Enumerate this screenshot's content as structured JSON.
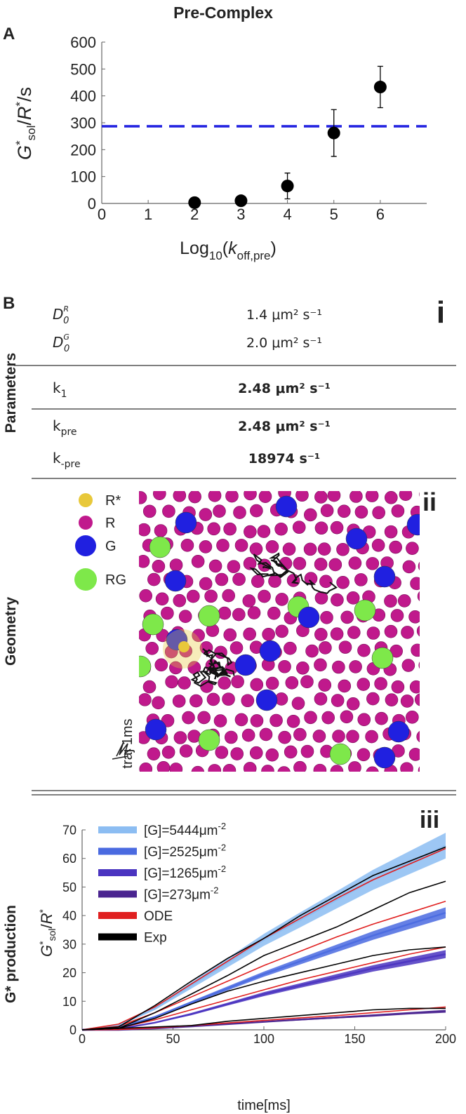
{
  "chart_data": [
    {
      "type": "scatter",
      "title": "Pre-Complex",
      "panel": "A",
      "y_label": [
        "G",
        "*",
        "sol",
        "/",
        "R",
        "*",
        "/s"
      ],
      "x_label": [
        "Log",
        "10",
        "(",
        "k",
        "off,pre",
        ")"
      ],
      "x": [
        2,
        3,
        4,
        5,
        6
      ],
      "values": [
        3,
        10,
        65,
        262,
        433
      ],
      "errors": [
        0,
        3,
        48,
        87,
        77
      ],
      "color": "#000000",
      "reference_line": {
        "value": 287,
        "color": "#2020e0"
      },
      "xlim": [
        0,
        7
      ],
      "xticks": [
        0,
        1,
        2,
        3,
        4,
        5,
        6
      ],
      "ylim": [
        0,
        600
      ],
      "yticks": [
        0,
        100,
        200,
        300,
        400,
        500,
        600
      ]
    },
    {
      "type": "band-line",
      "panel": "iii",
      "side_label": "G* production",
      "y_label": [
        "G",
        "*",
        "sol",
        "/",
        "R",
        "*"
      ],
      "x_label": "time[ms]",
      "x": [
        0,
        20,
        40,
        60,
        80,
        100,
        120,
        140,
        160,
        180,
        200
      ],
      "series": [
        {
          "name": [
            "[G]=5444μm",
            "-2"
          ],
          "color": "#8cbdf2",
          "values": [
            0,
            1.5,
            7.5,
            15.5,
            23.5,
            31.5,
            38.5,
            45.5,
            52.5,
            58.5,
            64.5
          ],
          "band": [
            0,
            0.2,
            0.6,
            1.1,
            1.6,
            2.1,
            2.6,
            3,
            3.5,
            4,
            4.5
          ]
        },
        {
          "name": [
            "[G]=2525μm",
            "-2"
          ],
          "color": "#4a6ae0",
          "values": [
            0,
            0.8,
            4.5,
            9.5,
            14.5,
            19.5,
            24,
            28.5,
            33,
            37,
            41
          ],
          "band": [
            0,
            0.1,
            0.3,
            0.5,
            0.7,
            0.9,
            1.1,
            1.3,
            1.5,
            1.7,
            1.9
          ]
        },
        {
          "name": [
            "[G]=1265μm",
            "-2"
          ],
          "color": "#4a34c0",
          "values": [
            0,
            0.3,
            2.5,
            5.5,
            9,
            12.5,
            15.5,
            18.5,
            21.5,
            24,
            26.5
          ],
          "band": [
            0,
            0.1,
            0.2,
            0.4,
            0.5,
            0.7,
            0.8,
            1,
            1.1,
            1.3,
            1.4
          ]
        },
        {
          "name": [
            "[G]=273μm",
            "-2"
          ],
          "color": "#4a2490",
          "values": [
            0,
            0,
            0.5,
            1.2,
            2,
            2.8,
            3.6,
            4.3,
            5,
            5.8,
            6.5
          ],
          "band": [
            0,
            0,
            0.1,
            0.1,
            0.2,
            0.2,
            0.3,
            0.3,
            0.4,
            0.4,
            0.5
          ]
        },
        {
          "name": [
            "ODE"
          ],
          "color": "#e02020",
          "lines": [
            [
              0,
              2,
              8,
              16,
              24,
              32,
              39,
              46,
              52.5,
              58,
              63.5
            ],
            [
              0,
              1.2,
              6,
              11.5,
              17,
              22.5,
              27.5,
              32.5,
              37,
              41,
              45
            ],
            [
              0,
              0.6,
              3.5,
              7,
              10.5,
              14,
              17.5,
              20.5,
              23.5,
              26.5,
              29
            ],
            [
              0,
              0.1,
              0.7,
              1.5,
              2.4,
              3.3,
              4.2,
              5,
              6,
              7,
              8
            ]
          ]
        },
        {
          "name": [
            "Exp"
          ],
          "color": "#000000",
          "lines": [
            [
              0,
              1,
              8.5,
              17,
              25,
              32,
              40,
              47,
              54,
              59,
              64
            ],
            [
              0,
              0.5,
              6,
              12.5,
              19,
              26,
              31,
              36,
              42,
              48,
              52
            ],
            [
              0,
              0.5,
              4,
              9,
              13.5,
              17,
              20,
              23,
              26,
              28,
              29
            ],
            [
              0,
              0.5,
              1,
              1.5,
              3,
              4,
              5,
              6,
              7,
              7.5,
              7.5
            ]
          ]
        }
      ],
      "xlim": [
        0,
        200
      ],
      "xticks": [
        0,
        50,
        100,
        150,
        200
      ],
      "ylim": [
        0,
        70
      ],
      "yticks": [
        0,
        10,
        20,
        30,
        40,
        50,
        60,
        70
      ]
    }
  ],
  "panel_b": {
    "label": "B",
    "parameters": {
      "panel": "i",
      "side_label": "Parameters",
      "rows": [
        {
          "symbol": [
            "D",
            "R",
            "0"
          ],
          "value": "1.4 μm² s⁻¹"
        },
        {
          "symbol": [
            "D",
            "G",
            "0"
          ],
          "value": "2.0 μm² s⁻¹"
        },
        {
          "symbol": [
            "k",
            "1"
          ],
          "value": "2.48 μm² s⁻¹"
        },
        {
          "symbol": [
            "k",
            "pre"
          ],
          "value": "2.48 μm² s⁻¹"
        },
        {
          "symbol": [
            "k",
            "-pre"
          ],
          "value": "18974 s⁻¹"
        }
      ]
    },
    "geometry": {
      "panel": "ii",
      "side_label": "Geometry",
      "scale_label": "traj 1ms",
      "legend": [
        {
          "name": "R*",
          "color": "#e8c83a"
        },
        {
          "name": "R",
          "color": "#c0198c"
        },
        {
          "name": "G",
          "color": "#2020e0"
        },
        {
          "name": "RG",
          "color": "#7ee84a"
        }
      ]
    }
  }
}
